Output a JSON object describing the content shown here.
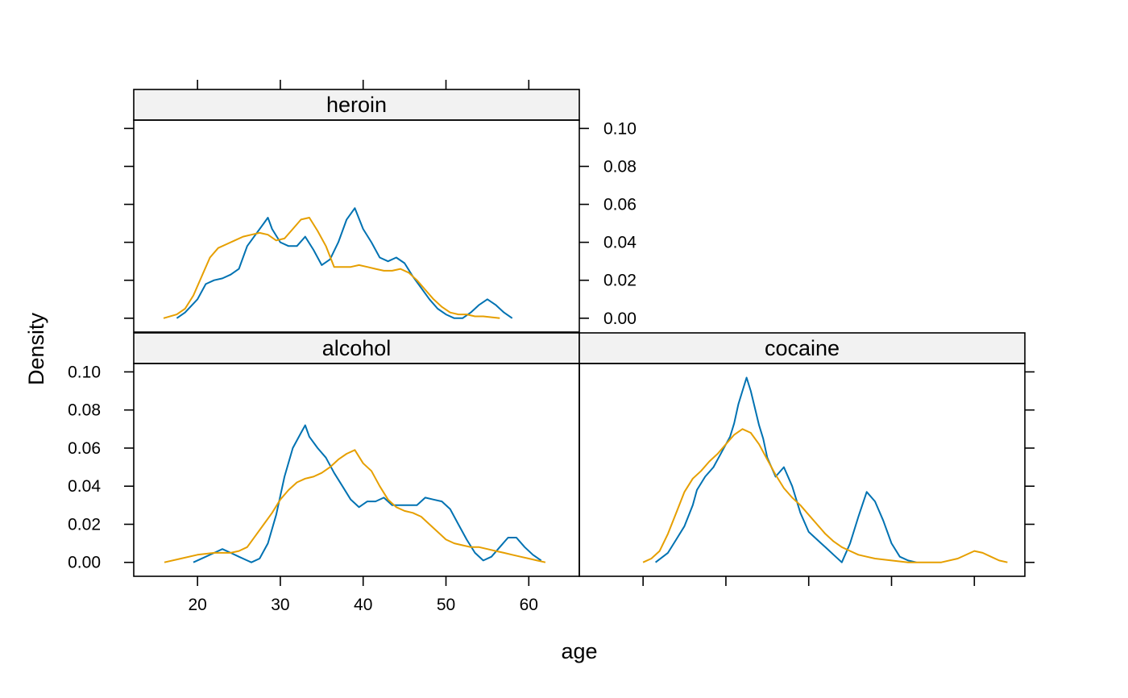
{
  "chart_data": {
    "type": "line",
    "xlabel": "age",
    "ylabel": "Density",
    "xlim": [
      12.3,
      66.1
    ],
    "ylim": [
      -0.0073,
      0.1044
    ],
    "x_ticks": [
      20,
      30,
      40,
      50,
      60
    ],
    "y_ticks": [
      0.0,
      0.02,
      0.04,
      0.06,
      0.08,
      0.1
    ],
    "x_tick_labels": [
      "20",
      "30",
      "40",
      "50",
      "60"
    ],
    "y_tick_labels": [
      "0.00",
      "0.02",
      "0.04",
      "0.06",
      "0.08",
      "0.10"
    ],
    "colors": {
      "blue": "#0072B2",
      "orange": "#E69F00"
    },
    "panels": [
      {
        "id": "heroin",
        "label": "heroin",
        "series": [
          {
            "color": "blue",
            "x": [
              17.5,
              18.5,
              20,
              21,
              22,
              23,
              24,
              25,
              26,
              27,
              28,
              28.5,
              29,
              30,
              31,
              32,
              33,
              34,
              35,
              36,
              37,
              38,
              39,
              40,
              41,
              42,
              43,
              44,
              45,
              46,
              47,
              48,
              49,
              50,
              51,
              52,
              53,
              54,
              55,
              56,
              57,
              58
            ],
            "y": [
              0.0,
              0.003,
              0.01,
              0.018,
              0.02,
              0.021,
              0.023,
              0.026,
              0.038,
              0.044,
              0.05,
              0.053,
              0.047,
              0.04,
              0.038,
              0.038,
              0.043,
              0.036,
              0.028,
              0.031,
              0.04,
              0.052,
              0.058,
              0.047,
              0.04,
              0.032,
              0.03,
              0.032,
              0.029,
              0.022,
              0.016,
              0.01,
              0.005,
              0.002,
              0.0,
              0.0,
              0.003,
              0.007,
              0.01,
              0.007,
              0.003,
              0.0
            ]
          },
          {
            "color": "orange",
            "x": [
              15.9,
              17.5,
              18.5,
              19.5,
              20.5,
              21.5,
              22.5,
              23.5,
              24.5,
              25.5,
              26.5,
              27.5,
              28.5,
              29.5,
              30.5,
              31.5,
              32.5,
              33.5,
              34.5,
              35.5,
              36.5,
              37.5,
              38.5,
              39.5,
              40.5,
              41.5,
              42.5,
              43.5,
              44.5,
              45.5,
              46.5,
              47.5,
              48.5,
              49.5,
              50.5,
              51.5,
              52.5,
              53.5,
              54.5,
              55.5,
              56.5
            ],
            "y": [
              0.0,
              0.002,
              0.005,
              0.012,
              0.022,
              0.032,
              0.037,
              0.039,
              0.041,
              0.043,
              0.044,
              0.045,
              0.044,
              0.041,
              0.042,
              0.047,
              0.052,
              0.053,
              0.046,
              0.038,
              0.027,
              0.027,
              0.027,
              0.028,
              0.027,
              0.026,
              0.025,
              0.025,
              0.026,
              0.024,
              0.02,
              0.015,
              0.01,
              0.006,
              0.003,
              0.002,
              0.002,
              0.001,
              0.001,
              0.0005,
              0.0
            ]
          }
        ]
      },
      {
        "id": "alcohol",
        "label": "alcohol",
        "series": [
          {
            "color": "blue",
            "x": [
              19.5,
              21,
              22.5,
              23,
              24,
              25,
              26,
              26.5,
              27.5,
              28.5,
              29.5,
              30.5,
              31.5,
              32.5,
              33,
              33.5,
              34.5,
              35.5,
              36.5,
              37.5,
              38.5,
              39.5,
              40.5,
              41.5,
              42.5,
              43.5,
              44.5,
              45.5,
              46.5,
              47.5,
              48.5,
              49.5,
              50.5,
              51.5,
              52.5,
              53.5,
              54.5,
              55.5,
              56.5,
              57.5,
              58.5,
              59.5,
              60.5,
              61.5
            ],
            "y": [
              0.0,
              0.003,
              0.006,
              0.007,
              0.005,
              0.003,
              0.001,
              0.0,
              0.002,
              0.01,
              0.025,
              0.045,
              0.06,
              0.068,
              0.072,
              0.066,
              0.06,
              0.055,
              0.047,
              0.04,
              0.033,
              0.029,
              0.032,
              0.032,
              0.034,
              0.03,
              0.03,
              0.03,
              0.03,
              0.034,
              0.033,
              0.032,
              0.028,
              0.02,
              0.012,
              0.005,
              0.001,
              0.003,
              0.008,
              0.013,
              0.013,
              0.008,
              0.004,
              0.001
            ]
          },
          {
            "color": "orange",
            "x": [
              16,
              18,
              20,
              22,
              23,
              24,
              25,
              26,
              27,
              28,
              29,
              30,
              31,
              32,
              33,
              34,
              35,
              36,
              37,
              38,
              39,
              40,
              41,
              42,
              43,
              44,
              45,
              46,
              47,
              48,
              49,
              50,
              51,
              52,
              53,
              54,
              55,
              56,
              57,
              58,
              59,
              60,
              61,
              62
            ],
            "y": [
              0.0,
              0.002,
              0.004,
              0.005,
              0.005,
              0.005,
              0.006,
              0.008,
              0.014,
              0.02,
              0.026,
              0.033,
              0.038,
              0.042,
              0.044,
              0.045,
              0.047,
              0.05,
              0.054,
              0.057,
              0.059,
              0.052,
              0.048,
              0.04,
              0.033,
              0.029,
              0.027,
              0.026,
              0.024,
              0.02,
              0.016,
              0.012,
              0.01,
              0.009,
              0.008,
              0.008,
              0.007,
              0.006,
              0.005,
              0.004,
              0.003,
              0.002,
              0.001,
              0.0
            ]
          }
        ]
      },
      {
        "id": "cocaine",
        "label": "cocaine",
        "series": [
          {
            "color": "blue",
            "x": [
              21.5,
              23,
              24,
              25,
              26,
              26.5,
              27.5,
              28.5,
              29.5,
              30.5,
              31,
              31.5,
              32,
              32.5,
              33,
              34,
              34.5,
              35,
              36,
              37,
              38,
              39,
              40,
              41,
              42,
              43,
              44,
              45,
              46,
              47,
              48,
              49,
              50,
              51,
              52,
              53
            ],
            "y": [
              0.0,
              0.005,
              0.012,
              0.019,
              0.03,
              0.038,
              0.045,
              0.05,
              0.058,
              0.066,
              0.073,
              0.083,
              0.09,
              0.097,
              0.09,
              0.072,
              0.065,
              0.055,
              0.045,
              0.05,
              0.04,
              0.026,
              0.016,
              0.012,
              0.008,
              0.004,
              0.0,
              0.01,
              0.024,
              0.037,
              0.032,
              0.022,
              0.01,
              0.003,
              0.001,
              0.0
            ]
          },
          {
            "color": "orange",
            "x": [
              20,
              21,
              22,
              23,
              24,
              25,
              26,
              27,
              28,
              29,
              30,
              31,
              32,
              33,
              34,
              35,
              36,
              37,
              38,
              39,
              40,
              41,
              42,
              43,
              44,
              45,
              46,
              47,
              48,
              50,
              52,
              54,
              56,
              58,
              60,
              61,
              62,
              63,
              64
            ],
            "y": [
              0.0,
              0.002,
              0.006,
              0.015,
              0.026,
              0.037,
              0.044,
              0.048,
              0.053,
              0.057,
              0.062,
              0.067,
              0.07,
              0.068,
              0.062,
              0.054,
              0.046,
              0.039,
              0.034,
              0.03,
              0.025,
              0.02,
              0.015,
              0.011,
              0.008,
              0.006,
              0.004,
              0.003,
              0.002,
              0.001,
              0.0,
              0.0,
              0.0,
              0.002,
              0.006,
              0.005,
              0.003,
              0.001,
              0.0
            ]
          }
        ]
      }
    ]
  }
}
